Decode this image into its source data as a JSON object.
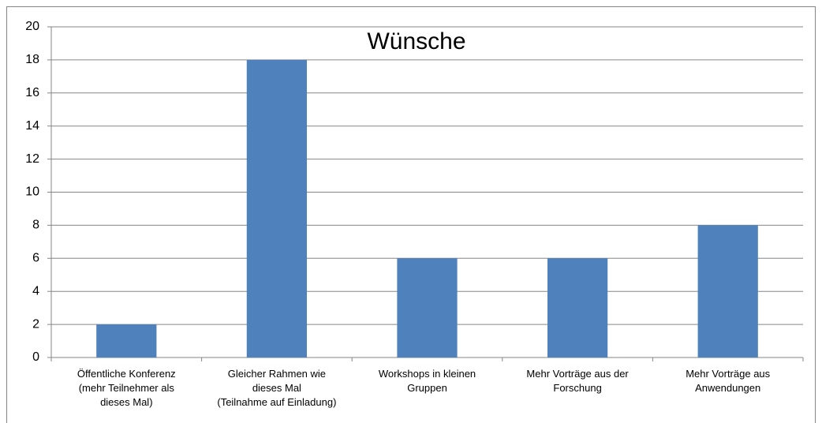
{
  "chart_data": {
    "type": "bar",
    "title": "Wünsche",
    "categories": [
      "Öffentliche Konferenz\n(mehr Teilnehmer als\ndieses Mal)",
      "Gleicher Rahmen wie\ndieses Mal\n(Teilnahme auf Einladung)",
      "Workshops in kleinen\nGruppen",
      "Mehr Vorträge aus der\nForschung",
      "Mehr Vorträge aus\nAnwendungen"
    ],
    "values": [
      2,
      18,
      6,
      6,
      8
    ],
    "color": "#4f81bd",
    "ylim": [
      0,
      20
    ],
    "yticks": [
      0,
      2,
      4,
      6,
      8,
      10,
      12,
      14,
      16,
      18,
      20
    ],
    "grid": true
  }
}
